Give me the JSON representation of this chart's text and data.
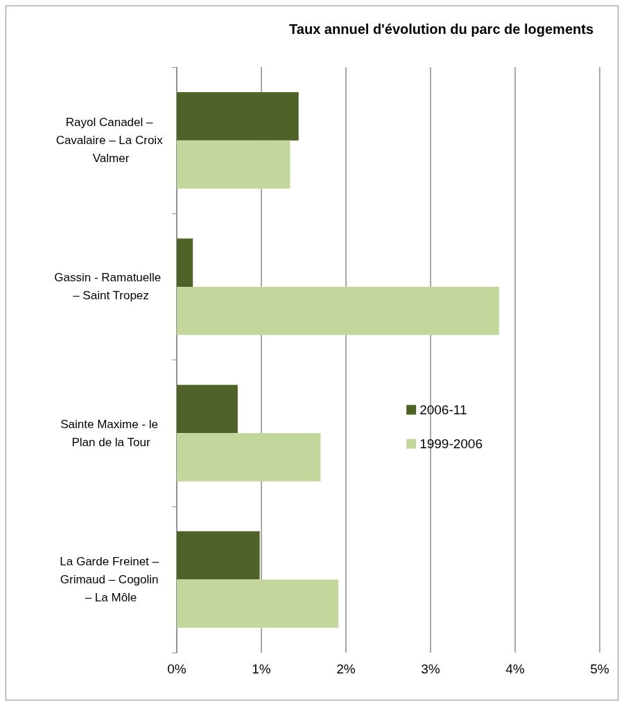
{
  "chart_data": {
    "type": "bar",
    "orientation": "horizontal",
    "title": "Taux annuel d'évolution du parc de logements",
    "categories": [
      "Rayol Canadel – Cavalaire – La Croix Valmer",
      "Gassin - Ramatuelle  – Saint Tropez",
      "Sainte Maxime - le Plan de la Tour",
      "La Garde Freinet – Grimaud – Cogolin – La Môle"
    ],
    "series": [
      {
        "name": "2006-11",
        "color": "#4f6228",
        "values": [
          1.44,
          0.19,
          0.72,
          0.98
        ]
      },
      {
        "name": "1999-2006",
        "color": "#c3d69b",
        "values": [
          1.34,
          3.81,
          1.7,
          1.91
        ]
      }
    ],
    "xlim": [
      0,
      5
    ],
    "xticks": [
      {
        "value": 0,
        "label": "0%"
      },
      {
        "value": 1,
        "label": "1%"
      },
      {
        "value": 2,
        "label": "2%"
      },
      {
        "value": 3,
        "label": "3%"
      },
      {
        "value": 4,
        "label": "4%"
      },
      {
        "value": 5,
        "label": "5%"
      }
    ],
    "grid": "x",
    "legend": "right"
  }
}
